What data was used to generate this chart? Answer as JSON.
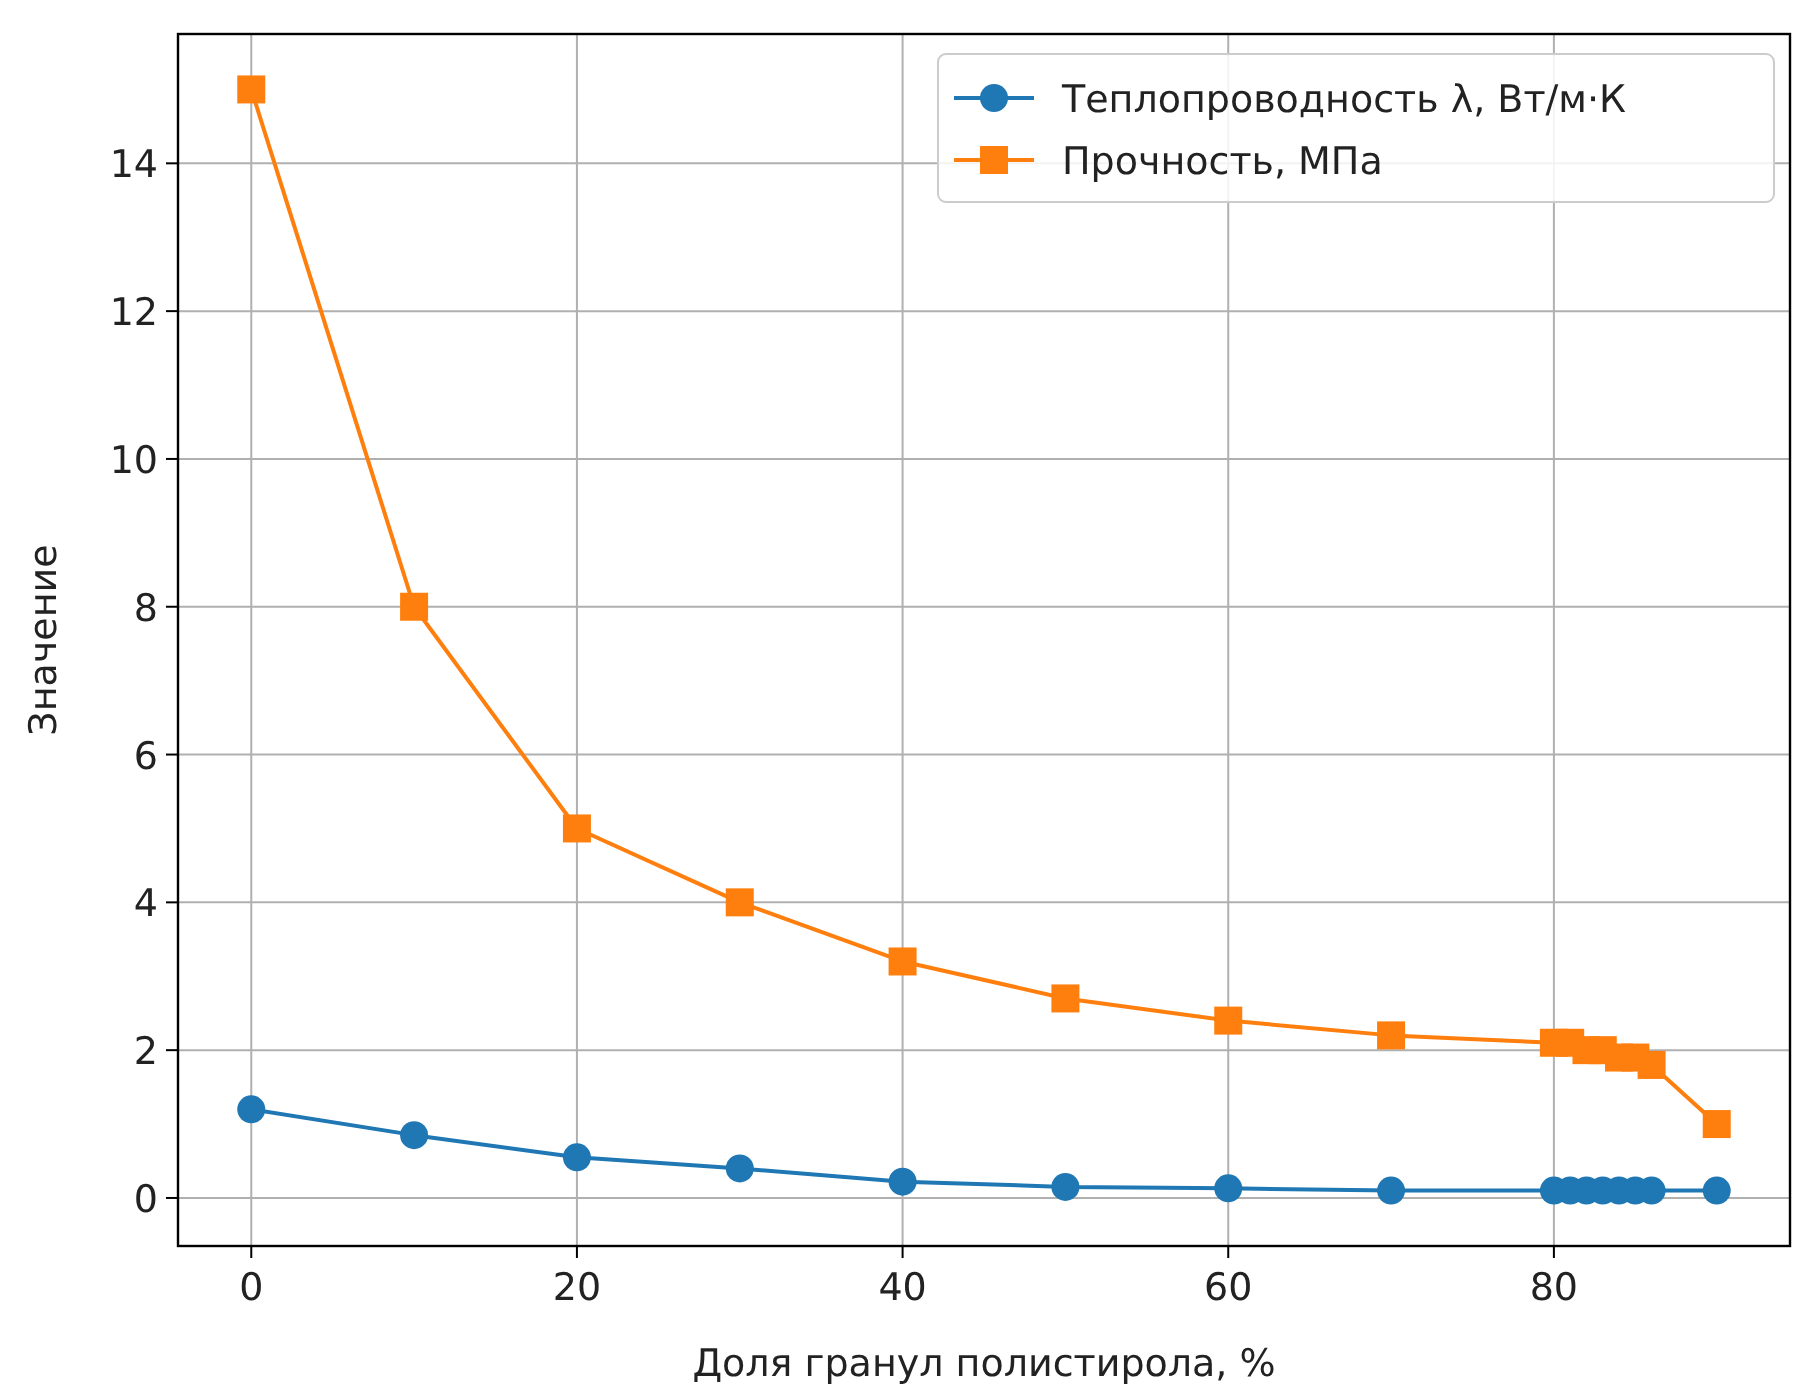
{
  "chart_data": {
    "type": "line",
    "xlabel": "Доля гранул полистирола, %",
    "ylabel": "Значение",
    "x": [
      0,
      10,
      20,
      30,
      40,
      50,
      60,
      70,
      80,
      81,
      82,
      83,
      84,
      85,
      86,
      90
    ],
    "series": [
      {
        "name": "Теплопроводность λ, Вт/м·К",
        "color": "#1f77b4",
        "marker": "circle",
        "values": [
          1.2,
          0.85,
          0.55,
          0.4,
          0.22,
          0.15,
          0.13,
          0.1,
          0.1,
          0.1,
          0.1,
          0.1,
          0.1,
          0.1,
          0.1,
          0.1
        ]
      },
      {
        "name": "Прочность, МПа",
        "color": "#ff7f0e",
        "marker": "square",
        "values": [
          15,
          8,
          5,
          4,
          3.2,
          2.7,
          2.4,
          2.2,
          2.1,
          2.1,
          2.0,
          2.0,
          1.9,
          1.9,
          1.8,
          1.0
        ]
      }
    ],
    "xlim": [
      -4.5,
      94.5
    ],
    "ylim": [
      -0.65,
      15.75
    ],
    "xticks": [
      0,
      20,
      40,
      60,
      80
    ],
    "yticks": [
      0,
      2,
      4,
      6,
      8,
      10,
      12,
      14
    ],
    "grid": true,
    "legend": "top right",
    "line_style": "solid"
  }
}
